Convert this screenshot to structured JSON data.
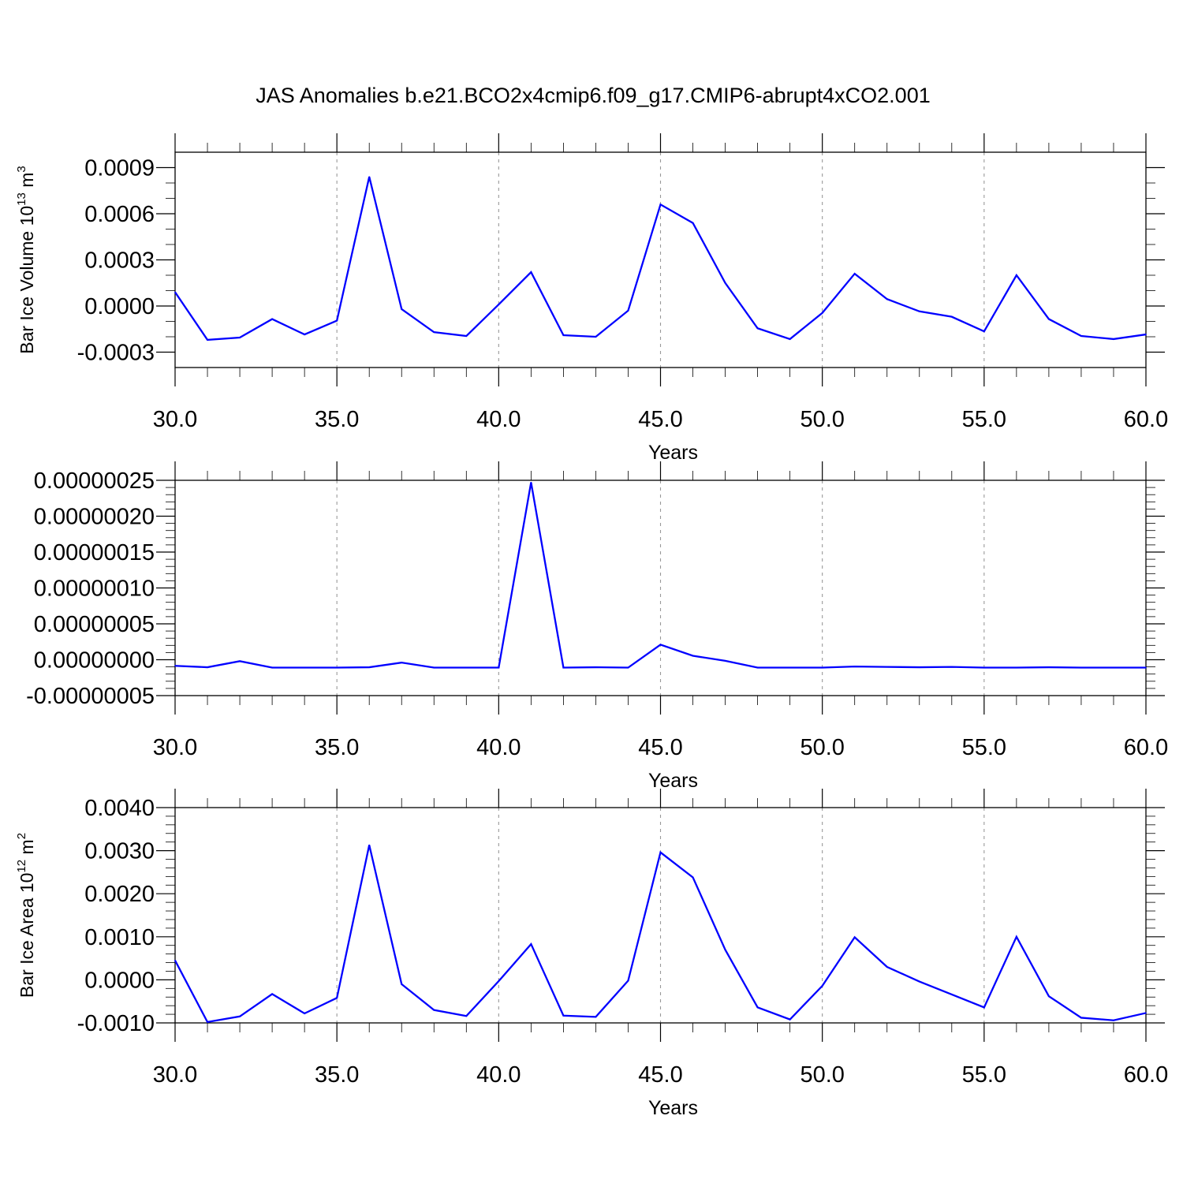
{
  "title": "JAS Anomalies b.e21.BCO2x4cmip6.f09_g17.CMIP6-abrupt4xCO2.001",
  "line_color": "#0000ff",
  "grid": "dashed vertical lines at major x ticks",
  "chart_data": [
    {
      "type": "line",
      "xlabel": "Years",
      "ylabel": {
        "pre": "Bar Ice Volume 10",
        "sup1": "13",
        "mid": " m",
        "sup2": "3"
      },
      "xlim": [
        30,
        60
      ],
      "ylim": [
        -0.0004,
        0.001
      ],
      "x_ticks": [
        "30.0",
        "35.0",
        "40.0",
        "45.0",
        "50.0",
        "55.0",
        "60.0"
      ],
      "y_ticks": [
        {
          "value": -0.0003,
          "label": "-0.0003"
        },
        {
          "value": 0.0,
          "label": "0.0000"
        },
        {
          "value": 0.0003,
          "label": "0.0003"
        },
        {
          "value": 0.0006,
          "label": "0.0006"
        },
        {
          "value": 0.0009,
          "label": "0.0009"
        }
      ],
      "minor_step": 0.0001,
      "x": [
        30,
        31,
        32,
        33,
        34,
        35,
        36,
        37,
        38,
        39,
        40,
        41,
        42,
        43,
        44,
        45,
        46,
        47,
        48,
        49,
        50,
        51,
        52,
        53,
        54,
        55,
        56,
        57,
        58,
        59,
        60
      ],
      "y": [
        9e-05,
        -0.00022,
        -0.000205,
        -8.5e-05,
        -0.000185,
        -9.5e-05,
        0.00084,
        -2e-05,
        -0.00017,
        -0.000195,
        1e-05,
        0.00022,
        -0.00019,
        -0.0002,
        -3e-05,
        0.00066,
        0.00054,
        0.00015,
        -0.000145,
        -0.000215,
        -4.5e-05,
        0.00021,
        4.5e-05,
        -3.5e-05,
        -7e-05,
        -0.000165,
        0.0002,
        -8.5e-05,
        -0.000195,
        -0.000215,
        -0.000185
      ]
    },
    {
      "type": "line",
      "xlabel": "Years",
      "ylabel": null,
      "xlim": [
        30,
        60
      ],
      "ylim": [
        -5e-08,
        2.5e-07
      ],
      "x_ticks": [
        "30.0",
        "35.0",
        "40.0",
        "45.0",
        "50.0",
        "55.0",
        "60.0"
      ],
      "y_ticks": [
        {
          "value": -5e-08,
          "label": "-0.00000005"
        },
        {
          "value": 0.0,
          "label": "0.00000000"
        },
        {
          "value": 5e-08,
          "label": "0.00000005"
        },
        {
          "value": 1e-07,
          "label": "0.00000010"
        },
        {
          "value": 1.5e-07,
          "label": "0.00000015"
        },
        {
          "value": 2e-07,
          "label": "0.00000020"
        },
        {
          "value": 2.5e-07,
          "label": "0.00000025"
        }
      ],
      "minor_step": 1e-08,
      "x": [
        30,
        31,
        32,
        33,
        34,
        35,
        36,
        37,
        38,
        39,
        40,
        41,
        42,
        43,
        44,
        45,
        46,
        47,
        48,
        49,
        50,
        51,
        52,
        53,
        54,
        55,
        56,
        57,
        58,
        59,
        60
      ],
      "y": [
        -8.5e-09,
        -1.05e-08,
        -2e-09,
        -1.1e-08,
        -1.1e-08,
        -1.1e-08,
        -1.05e-08,
        -4e-09,
        -1.1e-08,
        -1.1e-08,
        -1.1e-08,
        2.47e-07,
        -1.1e-08,
        -1.05e-08,
        -1.1e-08,
        2.1e-08,
        5.5e-09,
        -1.5e-09,
        -1.1e-08,
        -1.1e-08,
        -1.1e-08,
        -9.5e-09,
        -1e-08,
        -1.05e-08,
        -1e-08,
        -1.1e-08,
        -1.1e-08,
        -1.05e-08,
        -1.1e-08,
        -1.1e-08,
        -1.1e-08
      ]
    },
    {
      "type": "line",
      "xlabel": "Years",
      "ylabel": {
        "pre": "Bar Ice Area 10",
        "sup1": "12",
        "mid": " m",
        "sup2": "2"
      },
      "xlim": [
        30,
        60
      ],
      "ylim": [
        -0.001,
        0.004
      ],
      "x_ticks": [
        "30.0",
        "35.0",
        "40.0",
        "45.0",
        "50.0",
        "55.0",
        "60.0"
      ],
      "y_ticks": [
        {
          "value": -0.001,
          "label": "-0.0010"
        },
        {
          "value": 0.0,
          "label": "0.0000"
        },
        {
          "value": 0.001,
          "label": "0.0010"
        },
        {
          "value": 0.002,
          "label": "0.0020"
        },
        {
          "value": 0.003,
          "label": "0.0030"
        },
        {
          "value": 0.004,
          "label": "0.0040"
        }
      ],
      "minor_step": 0.0002,
      "x": [
        30,
        31,
        32,
        33,
        34,
        35,
        36,
        37,
        38,
        39,
        40,
        41,
        42,
        43,
        44,
        45,
        46,
        47,
        48,
        49,
        50,
        51,
        52,
        53,
        54,
        55,
        56,
        57,
        58,
        59,
        60
      ],
      "y": [
        0.00045,
        -0.00098,
        -0.00085,
        -0.00033,
        -0.00078,
        -0.00042,
        0.00313,
        -0.0001,
        -0.0007,
        -0.00084,
        -3e-05,
        0.00083,
        -0.00083,
        -0.00086,
        -2e-05,
        0.00296,
        0.00238,
        0.0007,
        -0.00064,
        -0.00092,
        -0.00014,
        0.00099,
        0.0003,
        -4e-05,
        -0.00034,
        -0.00064,
        0.001,
        -0.00038,
        -0.00088,
        -0.00094,
        -0.00077
      ]
    }
  ]
}
